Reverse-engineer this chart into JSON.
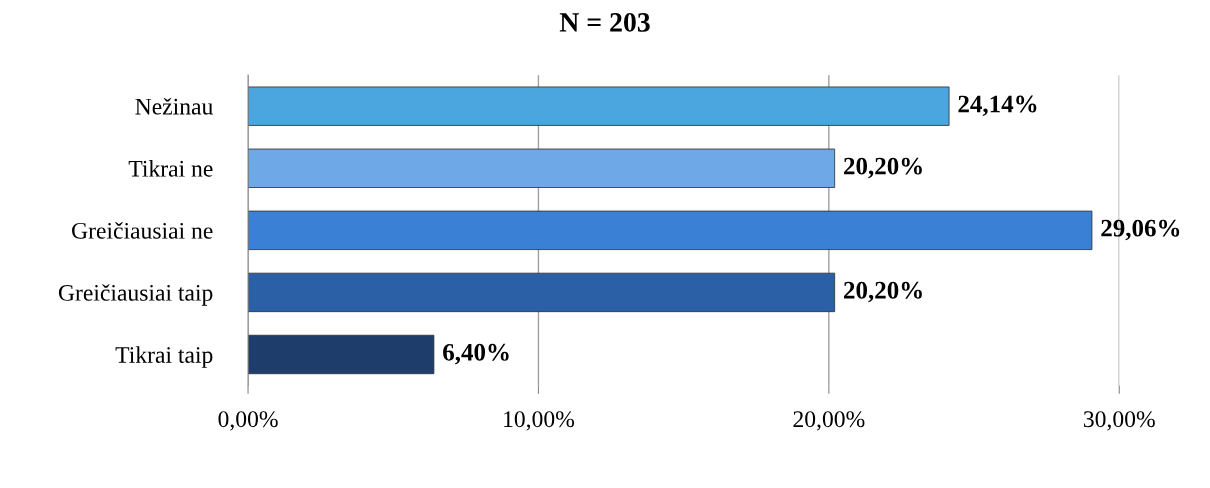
{
  "chart_data": {
    "type": "bar",
    "orientation": "horizontal",
    "title": "N = 203",
    "categories": [
      "Nežinau",
      "Tikrai ne",
      "Greičiausiai ne",
      "Greičiausiai taip",
      "Tikrai taip"
    ],
    "values": [
      24.14,
      20.2,
      29.06,
      20.2,
      6.4
    ],
    "value_labels": [
      "24,14%",
      "20,20%",
      "29,06%",
      "20,20%",
      "6,40%"
    ],
    "colors": [
      "#4ba6e0",
      "#6ea8e6",
      "#3a80d4",
      "#2b5fa6",
      "#1e3d6b"
    ],
    "xlim": [
      0,
      30
    ],
    "xticks": [
      {
        "value": 0,
        "label": "0,00%"
      },
      {
        "value": 10,
        "label": "10,00%"
      },
      {
        "value": 20,
        "label": "20,00%"
      },
      {
        "value": 30,
        "label": "30,00%"
      }
    ],
    "grid": "x"
  }
}
